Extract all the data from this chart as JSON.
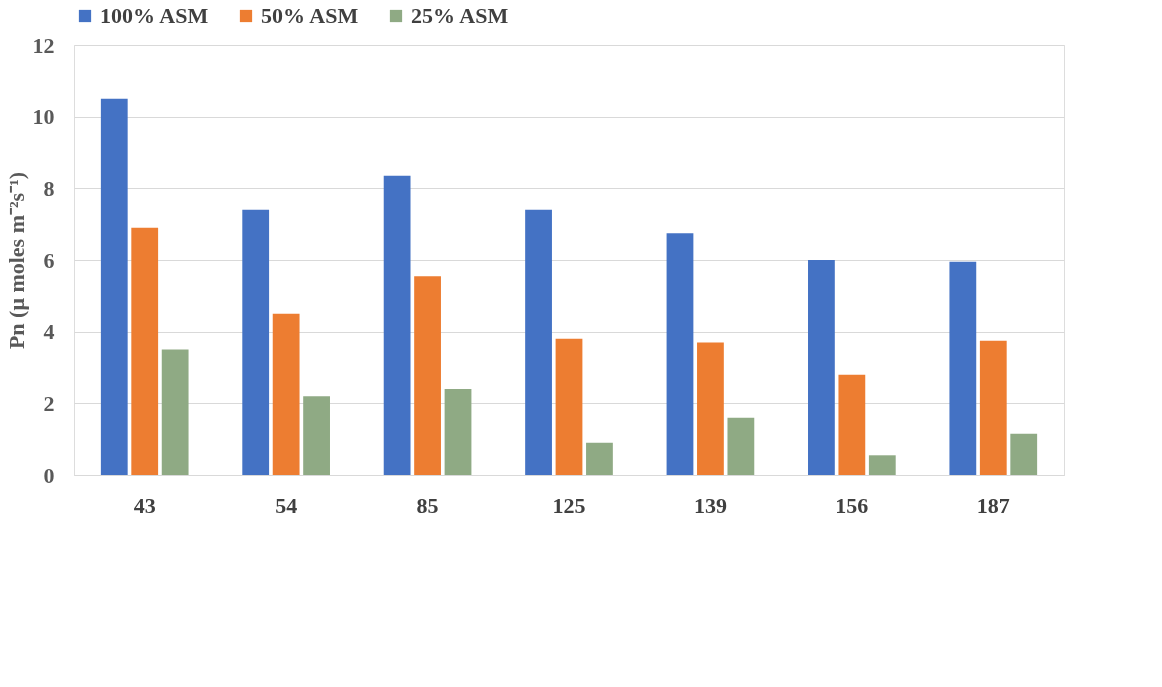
{
  "chart_data": {
    "type": "bar",
    "ylabel": "Pn (μ moles m⁻²s⁻¹)",
    "categories": [
      "43",
      "54",
      "85",
      "125",
      "139",
      "156",
      "187"
    ],
    "series": [
      {
        "name": "100% ASM",
        "color": "#4472c4",
        "values": [
          10.5,
          7.4,
          8.35,
          7.4,
          6.75,
          6.0,
          5.95
        ]
      },
      {
        "name": "50% ASM",
        "color": "#ed7d31",
        "values": [
          6.9,
          4.5,
          5.55,
          3.8,
          3.7,
          2.8,
          3.75
        ]
      },
      {
        "name": "25% ASM",
        "color": "#8faa84",
        "values": [
          3.5,
          2.2,
          2.4,
          0.9,
          1.6,
          0.55,
          1.15
        ]
      }
    ],
    "ylim": [
      0,
      12
    ],
    "yticks": [
      0,
      2,
      4,
      6,
      8,
      10,
      12
    ],
    "grid": "y",
    "legend": "top"
  }
}
